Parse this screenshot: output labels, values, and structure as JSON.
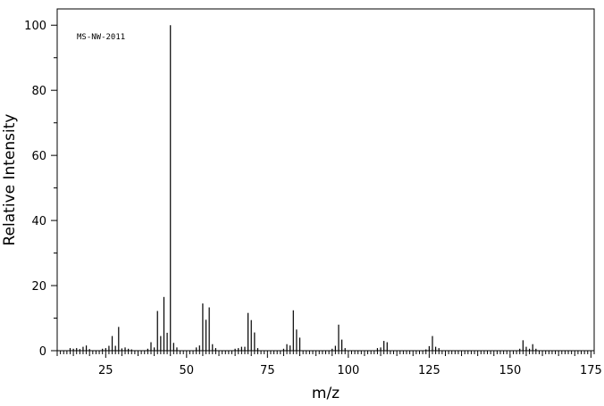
{
  "chart_data": {
    "type": "bar",
    "title": "",
    "annotation": "MS-NW-2011",
    "xlabel": "m/z",
    "ylabel": "Relative Intensity",
    "xlim": [
      10,
      176
    ],
    "ylim": [
      0,
      105
    ],
    "x_ticks": [
      25,
      50,
      75,
      100,
      125,
      150,
      175
    ],
    "y_ticks": [
      0,
      20,
      40,
      60,
      80,
      100
    ],
    "grid": false,
    "legend": "none",
    "series": [
      {
        "x": [
          14,
          15,
          16,
          17,
          18,
          19,
          20,
          24,
          25,
          26,
          27,
          28,
          29,
          30,
          31,
          32,
          33,
          38,
          39,
          40,
          41,
          42,
          43,
          44,
          45,
          46,
          47,
          53,
          54,
          55,
          56,
          57,
          58,
          59,
          65,
          66,
          67,
          68,
          69,
          70,
          71,
          72,
          80,
          81,
          82,
          83,
          84,
          85,
          95,
          96,
          97,
          98,
          99,
          109,
          110,
          111,
          112,
          124,
          125,
          126,
          127,
          128,
          153,
          154,
          155,
          156,
          157,
          158
        ],
        "y": [
          0.8,
          0.6,
          0.8,
          0.5,
          1.2,
          1.6,
          0.5,
          0.6,
          0.8,
          1.5,
          4.5,
          1.5,
          7.3,
          0.7,
          1.0,
          0.6,
          0.4,
          0.6,
          2.6,
          1.0,
          12.2,
          4.5,
          16.5,
          5.5,
          100.0,
          2.4,
          1.0,
          1.0,
          1.6,
          14.5,
          9.5,
          13.3,
          2.0,
          0.8,
          0.6,
          0.8,
          1.2,
          1.2,
          11.6,
          9.4,
          5.6,
          0.8,
          0.6,
          2.0,
          1.6,
          12.4,
          6.5,
          4.0,
          0.6,
          1.5,
          8.0,
          3.4,
          0.8,
          0.8,
          1.0,
          3.0,
          2.6,
          0.4,
          1.4,
          4.5,
          1.2,
          0.8,
          0.6,
          3.2,
          1.2,
          0.6,
          2.0,
          0.6
        ],
        "color": "#000000"
      }
    ]
  }
}
